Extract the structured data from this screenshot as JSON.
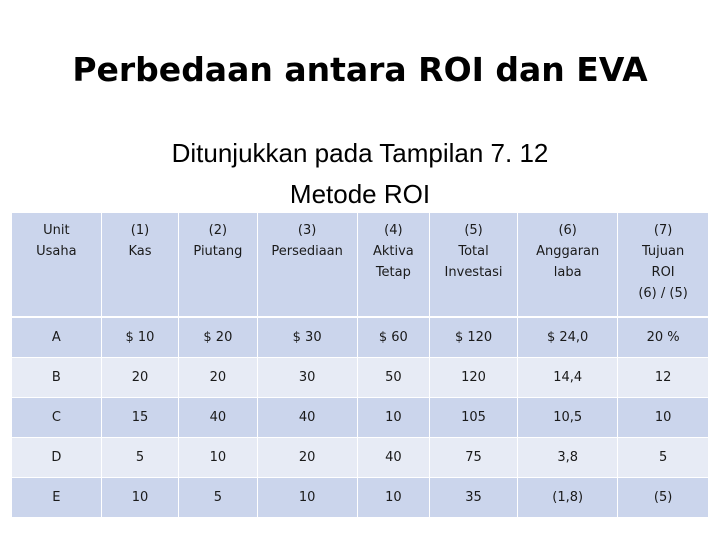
{
  "slide": {
    "title": "Perbedaan antara ROI dan EVA",
    "subtitle_line1": "Ditunjukkan pada Tampilan 7. 12",
    "subtitle_line2": "Metode ROI"
  },
  "table": {
    "headers": [
      [
        "Unit",
        "Usaha"
      ],
      [
        "(1)",
        "Kas"
      ],
      [
        "(2)",
        "Piutang"
      ],
      [
        "(3)",
        "Persediaan"
      ],
      [
        "(4)",
        "Aktiva",
        "Tetap"
      ],
      [
        "(5)",
        "Total",
        "Investasi"
      ],
      [
        "(6)",
        "Anggaran",
        "laba"
      ],
      [
        "(7)",
        "Tujuan",
        "ROI",
        "(6) / (5)"
      ]
    ],
    "rows": [
      [
        "A",
        "$ 10",
        "$ 20",
        "$ 30",
        "$ 60",
        "$ 120",
        "$ 24,0",
        "20 %"
      ],
      [
        "B",
        "20",
        "20",
        "30",
        "50",
        "120",
        "14,4",
        "12"
      ],
      [
        "C",
        "15",
        "40",
        "40",
        "10",
        "105",
        "10,5",
        "10"
      ],
      [
        "D",
        "5",
        "10",
        "20",
        "40",
        "75",
        "3,8",
        "5"
      ],
      [
        "E",
        "10",
        "5",
        "10",
        "10",
        "35",
        "(1,8)",
        "(5)"
      ]
    ]
  }
}
